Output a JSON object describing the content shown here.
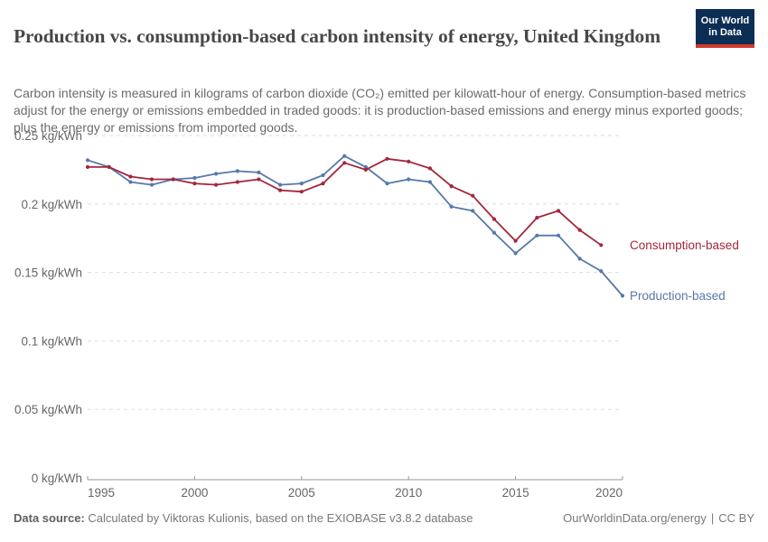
{
  "header": {
    "title": "Production vs. consumption-based carbon intensity of energy, United Kingdom",
    "logo": {
      "line1": "Our World",
      "line2": "in Data"
    }
  },
  "subtitle": "Carbon intensity is measured in kilograms of carbon dioxide (CO₂) emitted per kilowatt-hour of energy. Consumption-based metrics adjust for the energy or emissions embedded in traded goods: it is production-based emissions and energy minus exported goods; plus the energy or emissions from imported goods.",
  "chart_data": {
    "type": "line",
    "x": [
      1995,
      1996,
      1997,
      1998,
      1999,
      2000,
      2001,
      2002,
      2003,
      2004,
      2005,
      2006,
      2007,
      2008,
      2009,
      2010,
      2011,
      2012,
      2013,
      2014,
      2015,
      2016,
      2017,
      2018,
      2019,
      2020
    ],
    "series": [
      {
        "name": "Production-based",
        "color": "#5778A9",
        "values": [
          0.232,
          0.227,
          0.216,
          0.214,
          0.218,
          0.219,
          0.222,
          0.224,
          0.223,
          0.214,
          0.215,
          0.221,
          0.235,
          0.227,
          0.215,
          0.218,
          0.216,
          0.198,
          0.195,
          0.179,
          0.164,
          0.177,
          0.177,
          0.16,
          0.151,
          0.133
        ]
      },
      {
        "name": "Consumption-based",
        "color": "#A2273C",
        "values": [
          0.227,
          0.227,
          0.22,
          0.218,
          0.218,
          0.215,
          0.214,
          0.216,
          0.218,
          0.21,
          0.209,
          0.215,
          0.23,
          0.225,
          0.233,
          0.231,
          0.226,
          0.213,
          0.206,
          0.189,
          0.173,
          0.19,
          0.195,
          0.181,
          0.17,
          null
        ]
      }
    ],
    "title": "Production vs. consumption-based carbon intensity of energy, United Kingdom",
    "xlabel": "",
    "ylabel": "kg/kWh",
    "xlim": [
      1995,
      2020
    ],
    "ylim": [
      0,
      0.25
    ],
    "yticks": [
      0,
      0.05,
      0.1,
      0.15,
      0.2,
      0.25
    ],
    "ytick_labels": [
      "0 kg/kWh",
      "0.05 kg/kWh",
      "0.1 kg/kWh",
      "0.15 kg/kWh",
      "0.2 kg/kWh",
      "0.25 kg/kWh"
    ],
    "xticks": [
      1995,
      2000,
      2005,
      2010,
      2015,
      2020
    ],
    "grid": "horizontal-dashed",
    "legend_position": "right-end-of-lines"
  },
  "footer": {
    "source_label": "Data source:",
    "source_text": " Calculated by Viktoras Kulionis, based on the EXIOBASE v3.8.2 database",
    "link": "OurWorldinData.org/energy",
    "separator": "|",
    "license": "CC BY"
  },
  "colors": {
    "production": "#5778A9",
    "consumption": "#A2273C",
    "grid": "#DDDDDD",
    "axis": "#999999",
    "tick_text": "#666666",
    "logo_bg": "#0D2E54",
    "logo_accent": "#D0382E"
  }
}
